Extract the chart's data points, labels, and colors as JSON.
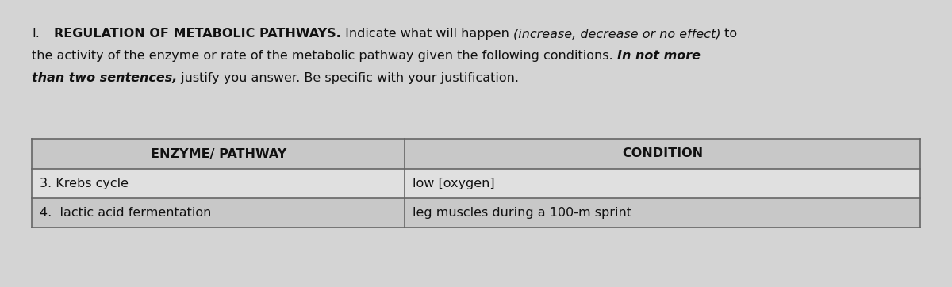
{
  "roman_numeral": "I.",
  "title_bold": "REGULATION OF METABOLIC PATHWAYS.",
  "title_normal": " Indicate what will happen ",
  "title_italic": "(increase, decrease or no effect)",
  "title_normal2": " to",
  "line2_normal": "the activity of the enzyme or rate of the metabolic pathway given the following conditions. ",
  "line2_italic_bold": "In not more",
  "line3_italic_bold": "than two sentences,",
  "line3_normal": " justify you answer. Be specific with your justification.",
  "col1_header": "ENZYME/ PATHWAY",
  "col2_header": "CONDITION",
  "rows": [
    [
      "3. Krebs cycle",
      "low [oxygen]"
    ],
    [
      "4.  lactic acid fermentation",
      "leg muscles during a 100-m sprint"
    ]
  ],
  "bg_color": "#d4d4d4",
  "table_bg_light": "#e0e0e0",
  "table_bg_dark": "#c8c8c8",
  "border_color": "#666666",
  "text_color": "#111111",
  "fig_width": 12.0,
  "fig_height": 3.62,
  "dpi": 100,
  "font_size": 11.5
}
